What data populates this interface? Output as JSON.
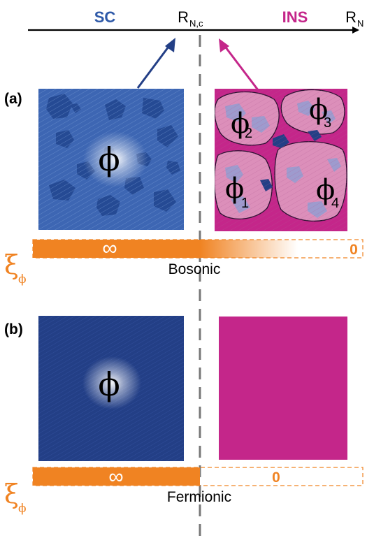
{
  "axis": {
    "sc_label": "SC",
    "ins_label": "INS",
    "critical_label": "R",
    "critical_sub": "N,c",
    "end_label": "R",
    "end_sub": "N"
  },
  "panel_a": {
    "tag": "(a)",
    "phi": "ϕ",
    "islands": [
      {
        "symbol": "ϕ",
        "index": "2"
      },
      {
        "symbol": "ϕ",
        "index": "3"
      },
      {
        "symbol": "ϕ",
        "index": "1"
      },
      {
        "symbol": "ϕ",
        "index": "4"
      }
    ],
    "bar": {
      "left_value": "∞",
      "right_value": "0"
    },
    "xi_symbol": "ξ",
    "xi_sub": "ϕ",
    "caption": "Bosonic"
  },
  "panel_b": {
    "tag": "(b)",
    "phi": "ϕ",
    "bar": {
      "left_value": "∞",
      "right_value": "0"
    },
    "xi_symbol": "ξ",
    "xi_sub": "ϕ",
    "caption": "Fermionic"
  },
  "colors": {
    "sc_blue": "#2e59a8",
    "sc_dark": "#233f86",
    "ins_magenta": "#c4268a",
    "ins_pink": "#dc8fba",
    "orange": "#f08322",
    "dash_gray": "#777777"
  }
}
